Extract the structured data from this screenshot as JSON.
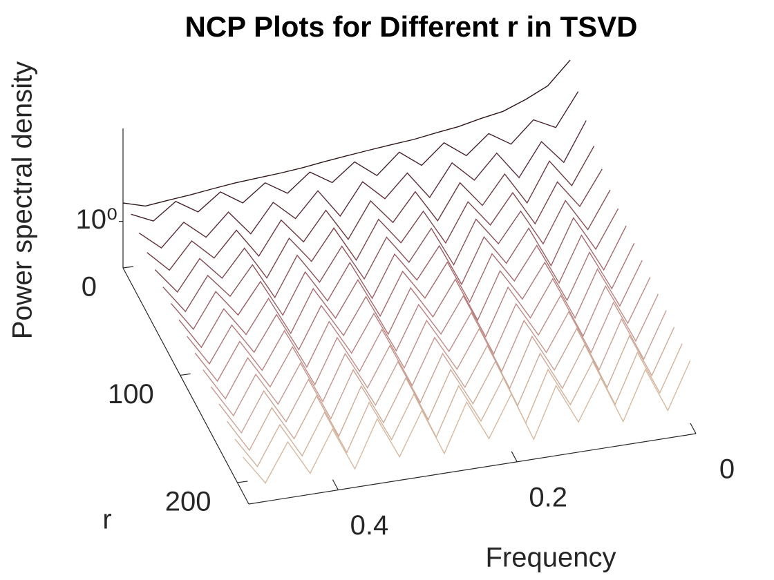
{
  "chart_data": {
    "type": "waterfall3d",
    "title": "NCP Plots for Different r in TSVD",
    "xlabel": "Frequency",
    "ylabel": "r",
    "zlabel": "Power spectral density",
    "x": [
      0,
      0.025,
      0.05,
      0.075,
      0.1,
      0.125,
      0.15,
      0.175,
      0.2,
      0.225,
      0.25,
      0.275,
      0.3,
      0.325,
      0.35,
      0.375,
      0.4,
      0.425,
      0.45,
      0.475,
      0.5
    ],
    "xlim": [
      0,
      0.5
    ],
    "xticks": [
      0,
      0.2,
      0.4
    ],
    "ylim": [
      0,
      220
    ],
    "yticks": [
      0,
      100,
      200
    ],
    "zlim": [
      0.1,
      100
    ],
    "zticks": [
      {
        "value": 1,
        "label": "10⁰"
      }
    ],
    "zscale": "log",
    "series": [
      {
        "r": 0,
        "color": "#2e1518",
        "values": [
          90,
          30,
          18,
          12,
          10,
          8,
          7,
          6,
          5.5,
          5,
          4.5,
          4,
          3.5,
          3.2,
          3,
          2.8,
          2.5,
          2.2,
          2,
          1.8,
          2.5
        ]
      },
      {
        "r": 14,
        "color": "#45222a",
        "values": [
          40,
          8,
          14,
          5,
          10,
          4,
          9,
          3.5,
          8,
          3,
          7,
          3,
          6,
          2.5,
          5,
          2.2,
          4.5,
          2,
          4,
          1.8,
          3
        ]
      },
      {
        "r": 28,
        "color": "#5a2c35",
        "values": [
          20,
          3,
          10,
          2,
          8,
          2.5,
          7,
          1.5,
          6,
          2,
          5.5,
          1.2,
          5,
          1.5,
          4,
          1,
          3.5,
          1.2,
          3,
          1,
          2.5
        ]
      },
      {
        "r": 42,
        "color": "#6c3840",
        "values": [
          12,
          2,
          8,
          1.2,
          6,
          1.5,
          5.5,
          1,
          5,
          1.3,
          4.5,
          0.8,
          4,
          1,
          3.5,
          0.7,
          3,
          0.9,
          2.5,
          0.7,
          2
        ]
      },
      {
        "r": 56,
        "color": "#7d454c",
        "values": [
          8,
          1.5,
          6,
          0.9,
          5,
          1.2,
          4.5,
          0.7,
          4,
          1,
          3.8,
          0.6,
          3.5,
          0.8,
          3,
          0.5,
          2.6,
          0.7,
          2.2,
          0.5,
          1.8
        ]
      },
      {
        "r": 70,
        "color": "#8c5258",
        "values": [
          6,
          1,
          5,
          0.7,
          4.2,
          1,
          4,
          0.5,
          3.6,
          0.8,
          3.3,
          0.5,
          3,
          0.6,
          2.7,
          0.4,
          2.4,
          0.6,
          2,
          0.4,
          1.6
        ]
      },
      {
        "r": 84,
        "color": "#9a5e63",
        "values": [
          5,
          0.8,
          4.5,
          0.5,
          3.8,
          0.8,
          3.5,
          0.4,
          3.2,
          0.7,
          3,
          0.4,
          2.8,
          0.5,
          2.5,
          0.35,
          2.2,
          0.5,
          1.9,
          0.35,
          1.5
        ]
      },
      {
        "r": 98,
        "color": "#a66a6d",
        "values": [
          4.5,
          0.6,
          4,
          0.45,
          3.4,
          0.7,
          3.2,
          0.35,
          3,
          0.6,
          2.7,
          0.35,
          2.5,
          0.45,
          2.3,
          0.3,
          2,
          0.4,
          1.7,
          0.3,
          1.4
        ]
      },
      {
        "r": 112,
        "color": "#b07576",
        "values": [
          4,
          0.5,
          3.6,
          0.4,
          3.1,
          0.6,
          2.9,
          0.3,
          2.7,
          0.5,
          2.5,
          0.3,
          2.3,
          0.4,
          2.1,
          0.28,
          1.9,
          0.35,
          1.6,
          0.28,
          1.3
        ]
      },
      {
        "r": 126,
        "color": "#b8817f",
        "values": [
          3.6,
          0.45,
          3.3,
          0.35,
          2.9,
          0.5,
          2.7,
          0.28,
          2.5,
          0.45,
          2.3,
          0.28,
          2.1,
          0.35,
          2,
          0.25,
          1.8,
          0.3,
          1.5,
          0.25,
          1.2
        ]
      },
      {
        "r": 140,
        "color": "#bf8c87",
        "values": [
          3.3,
          0.4,
          3,
          0.3,
          2.7,
          0.45,
          2.5,
          0.25,
          2.3,
          0.4,
          2.2,
          0.25,
          2,
          0.3,
          1.9,
          0.22,
          1.7,
          0.28,
          1.4,
          0.22,
          1.1
        ]
      },
      {
        "r": 154,
        "color": "#c5978e",
        "values": [
          3,
          0.35,
          2.8,
          0.28,
          2.5,
          0.4,
          2.3,
          0.22,
          2.2,
          0.35,
          2,
          0.22,
          1.9,
          0.28,
          1.8,
          0.2,
          1.6,
          0.25,
          1.3,
          0.2,
          1
        ]
      },
      {
        "r": 168,
        "color": "#caa194",
        "values": [
          2.8,
          0.3,
          2.6,
          0.25,
          2.3,
          0.35,
          2.2,
          0.2,
          2,
          0.3,
          1.9,
          0.2,
          1.8,
          0.25,
          1.7,
          0.18,
          1.5,
          0.22,
          1.2,
          0.18,
          0.9
        ]
      },
      {
        "r": 182,
        "color": "#cfaa98",
        "values": [
          2.6,
          0.28,
          2.4,
          0.22,
          2.2,
          0.3,
          2,
          0.18,
          1.9,
          0.28,
          1.8,
          0.18,
          1.7,
          0.22,
          1.6,
          0.16,
          1.4,
          0.2,
          1.1,
          0.16,
          0.8
        ]
      },
      {
        "r": 196,
        "color": "#d3b29c",
        "values": [
          2.4,
          0.25,
          2.2,
          0.2,
          2,
          0.28,
          1.9,
          0.16,
          1.8,
          0.25,
          1.7,
          0.16,
          1.6,
          0.2,
          1.5,
          0.15,
          1.3,
          0.18,
          1,
          0.15,
          0.7
        ]
      },
      {
        "r": 210,
        "color": "#d7b9a0",
        "values": [
          2.2,
          0.22,
          2,
          0.18,
          1.9,
          0.25,
          1.8,
          0.15,
          1.7,
          0.22,
          1.6,
          0.15,
          1.5,
          0.18,
          1.4,
          0.14,
          1.2,
          0.16,
          0.9,
          0.14,
          0.6
        ]
      }
    ]
  }
}
